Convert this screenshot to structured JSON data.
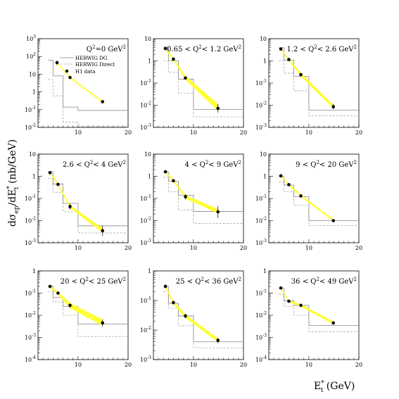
{
  "chart_data": {
    "type": "scatter",
    "xlabel": {
      "main": "E",
      "sub": "t",
      "sup": "*",
      "unit": " (GeV)"
    },
    "ylabel": {
      "prefix": "dσ",
      "sub1": "ep",
      "mid": "/dE",
      "sup2": "*",
      "sub2": "t",
      "unit": " (nb/GeV)"
    },
    "x_ticks": [
      "10",
      "20"
    ],
    "xlim": [
      2,
      20
    ],
    "legend": [
      {
        "name": "HERWIG DG",
        "style": "solid-grey"
      },
      {
        "name": "HERWIG Direct",
        "style": "dashed-grey"
      },
      {
        "name": "H1 data",
        "style": "dot"
      }
    ],
    "colors": {
      "band": "#ffff33",
      "data": "#000000",
      "dg": "#888888",
      "direct": "#aaaaaa"
    },
    "bins": [
      [
        4,
        5
      ],
      [
        5,
        7
      ],
      [
        7,
        10
      ],
      [
        10,
        20
      ]
    ],
    "panels": [
      {
        "label": "Q²=0 GeV²",
        "q2_text": {
          "a": "Q",
          "b": "2",
          "c": "=0 GeV",
          "d": "2"
        },
        "yexp": [
          -2,
          3
        ],
        "y_tick_labels": [
          "10^-2",
          "10^-1",
          "1",
          "10",
          "10^2",
          "10^3"
        ],
        "data": [
          [
            5.8,
            45,
            12,
            12
          ],
          [
            8.4,
            6.5,
            0.9,
            0.9
          ],
          [
            14.9,
            0.28,
            0.03,
            0.03
          ]
        ],
        "band": {
          "x": [
            5.8,
            8.4,
            14.9
          ],
          "lo": [
            40,
            5.8,
            0.25
          ],
          "hi": [
            50,
            7.2,
            0.31
          ]
        },
        "dg": [
          60,
          8,
          0.14,
          0.09
        ],
        "direct": [
          5,
          0.6,
          0.02,
          0.011
        ]
      },
      {
        "label": "0.65<Q²<1.2 GeV²",
        "q2_text": {
          "a": "0.65 < Q",
          "b": "2",
          "c": "< 1.2 GeV",
          "d": "2"
        },
        "yexp": [
          -3,
          1
        ],
        "y_tick_labels": [
          "10^-3",
          "10^-2",
          "10^-1",
          "1",
          "10"
        ],
        "data": [
          [
            4.4,
            3.6,
            0.4,
            0.4
          ],
          [
            6.0,
            1.2,
            0.15,
            0.15
          ],
          [
            8.4,
            0.17,
            0.03,
            0.03
          ],
          [
            14.9,
            0.0072,
            0.004,
            0.0025
          ]
        ],
        "band": {
          "x": [
            4.4,
            6.0,
            8.4,
            14.9
          ],
          "lo": [
            3.2,
            1.05,
            0.14,
            0.0055
          ],
          "hi": [
            4.0,
            1.35,
            0.21,
            0.0115
          ]
        },
        "dg": [
          4.2,
          1.0,
          0.15,
          0.0065
        ],
        "direct": [
          1.0,
          0.3,
          0.034,
          0.003
        ]
      },
      {
        "label": "1.2<Q²<2.6 GeV²",
        "q2_text": {
          "a": "1.2 < Q",
          "b": "2",
          "c": "< 2.6 GeV",
          "d": "2"
        },
        "yexp": [
          -3,
          1
        ],
        "y_tick_labels": [
          "10^-3",
          "10^-2",
          "10^-1",
          "1",
          "10"
        ],
        "data": [
          [
            4.4,
            3.4,
            0.3,
            0.3
          ],
          [
            6.0,
            1.15,
            0.12,
            0.12
          ],
          [
            8.4,
            0.24,
            0.04,
            0.04
          ],
          [
            14.9,
            0.0085,
            0.003,
            0.002
          ]
        ],
        "band": {
          "x": [
            4.4,
            6.0,
            8.4,
            14.9
          ],
          "lo": [
            3.1,
            1.02,
            0.2,
            0.0072
          ],
          "hi": [
            3.7,
            1.28,
            0.29,
            0.0105
          ]
        },
        "dg": [
          4.0,
          1.05,
          0.2,
          0.006
        ],
        "direct": [
          1.0,
          0.28,
          0.045,
          0.0033
        ]
      },
      {
        "label": "2.6<Q²<4 GeV²",
        "q2_text": {
          "a": "2.6 < Q",
          "b": "2",
          "c": "< 4 GeV",
          "d": "2"
        },
        "yexp": [
          -3,
          1
        ],
        "y_tick_labels": [
          "10^-3",
          "10^-2",
          "10^-1",
          "1",
          "10"
        ],
        "data": [
          [
            4.4,
            1.45,
            0.2,
            0.2
          ],
          [
            6.0,
            0.43,
            0.06,
            0.06
          ],
          [
            8.4,
            0.043,
            0.015,
            0.012
          ],
          [
            14.9,
            0.0035,
            0.0025,
            0.0015
          ]
        ],
        "band": {
          "x": [
            4.4,
            6.0,
            8.4,
            14.9
          ],
          "lo": [
            1.3,
            0.38,
            0.037,
            0.0029
          ],
          "hi": [
            1.62,
            0.5,
            0.05,
            0.0045
          ]
        },
        "dg": [
          1.6,
          0.45,
          0.06,
          0.0058
        ],
        "direct": [
          0.8,
          0.19,
          0.025,
          0.0028
        ]
      },
      {
        "label": "4<Q²<9 GeV²",
        "q2_text": {
          "a": "4 < Q",
          "b": "2",
          "c": "< 9 GeV",
          "d": "2"
        },
        "yexp": [
          -3,
          1
        ],
        "y_tick_labels": [
          "10^-3",
          "10^-2",
          "10^-1",
          "1",
          "10"
        ],
        "data": [
          [
            4.4,
            1.6,
            0.2,
            0.2
          ],
          [
            6.0,
            0.63,
            0.08,
            0.08
          ],
          [
            8.4,
            0.12,
            0.035,
            0.03
          ],
          [
            14.9,
            0.025,
            0.02,
            0.012
          ]
        ],
        "band": {
          "x": [
            4.4,
            6.0,
            8.4,
            14.9
          ],
          "lo": [
            1.45,
            0.56,
            0.1,
            0.021
          ],
          "hi": [
            1.78,
            0.72,
            0.14,
            0.033
          ]
        },
        "dg": [
          1.6,
          0.6,
          0.14,
          0.026
        ],
        "direct": [
          0.9,
          0.2,
          0.03,
          0.0075
        ]
      },
      {
        "label": "9<Q²<20 GeV²",
        "q2_text": {
          "a": "9 < Q",
          "b": "2",
          "c": "< 20 GeV",
          "d": "2"
        },
        "yexp": [
          -3,
          1
        ],
        "y_tick_labels": [
          "10^-3",
          "10^-2",
          "10^-1",
          "1",
          "10"
        ],
        "data": [
          [
            4.4,
            1.05,
            0.12,
            0.12
          ],
          [
            6.0,
            0.42,
            0.05,
            0.05
          ],
          [
            8.4,
            0.13,
            0.025,
            0.025
          ],
          [
            14.9,
            0.01,
            0.0015,
            0.0015
          ]
        ],
        "band": {
          "x": [
            4.4,
            6.0,
            8.4,
            14.9
          ],
          "lo": [
            0.97,
            0.38,
            0.12,
            0.0092
          ],
          "hi": [
            1.15,
            0.47,
            0.15,
            0.0115
          ]
        },
        "dg": [
          1.0,
          0.4,
          0.12,
          0.01
        ],
        "direct": [
          0.55,
          0.2,
          0.05,
          0.006
        ]
      },
      {
        "label": "20<Q²<25 GeV²",
        "q2_text": {
          "a": "20 < Q",
          "b": "2",
          "c": "< 25 GeV",
          "d": "2"
        },
        "yexp": [
          -4,
          0
        ],
        "y_tick_labels": [
          "10^-4",
          "10^-3",
          "10^-2",
          "10^-1",
          "1"
        ],
        "data": [
          [
            4.4,
            0.2,
            0.03,
            0.03
          ],
          [
            6.0,
            0.1,
            0.015,
            0.015
          ],
          [
            8.4,
            0.028,
            0.006,
            0.006
          ],
          [
            14.9,
            0.0045,
            0.002,
            0.0015
          ]
        ],
        "band": {
          "x": [
            4.4,
            6.0,
            8.4,
            14.9
          ],
          "lo": [
            0.18,
            0.085,
            0.021,
            0.0034
          ],
          "hi": [
            0.23,
            0.115,
            0.036,
            0.0065
          ]
        },
        "dg": [
          0.21,
          0.065,
          0.025,
          0.004
        ],
        "direct": [
          0.12,
          0.04,
          0.01,
          0.0011
        ]
      },
      {
        "label": "25<Q²<36 GeV²",
        "q2_text": {
          "a": "25 < Q",
          "b": "2",
          "c": "< 36 GeV",
          "d": "2"
        },
        "yexp": [
          -3,
          0
        ],
        "y_tick_labels": [
          "10^-3",
          "10^-2",
          "10^-1",
          "1"
        ],
        "data": [
          [
            4.4,
            0.3,
            0.04,
            0.04
          ],
          [
            6.0,
            0.085,
            0.012,
            0.012
          ],
          [
            8.4,
            0.03,
            0.005,
            0.005
          ],
          [
            14.9,
            0.0045,
            0.0009,
            0.0009
          ]
        ],
        "band": {
          "x": [
            4.4,
            6.0,
            8.4,
            14.9
          ],
          "lo": [
            0.27,
            0.075,
            0.026,
            0.0039
          ],
          "hi": [
            0.33,
            0.096,
            0.034,
            0.0052
          ]
        },
        "dg": [
          0.3,
          0.08,
          0.03,
          0.004
        ],
        "direct": [
          0.2,
          0.055,
          0.014,
          0.0025
        ]
      },
      {
        "label": "36<Q²<49 GeV²",
        "q2_text": {
          "a": "36 < Q",
          "b": "2",
          "c": "< 49 GeV",
          "d": "2"
        },
        "yexp": [
          -4,
          0
        ],
        "y_tick_labels": [
          "10^-4",
          "10^-3",
          "10^-2",
          "10^-1",
          "1"
        ],
        "data": [
          [
            4.4,
            0.17,
            0.02,
            0.02
          ],
          [
            6.0,
            0.043,
            0.006,
            0.006
          ],
          [
            8.4,
            0.028,
            0.004,
            0.004
          ],
          [
            14.9,
            0.0045,
            0.0008,
            0.0008
          ]
        ],
        "band": {
          "x": [
            4.4,
            6.0,
            8.4,
            14.9
          ],
          "lo": [
            0.155,
            0.039,
            0.025,
            0.0039
          ],
          "hi": [
            0.19,
            0.048,
            0.032,
            0.0052
          ]
        },
        "dg": [
          0.17,
          0.045,
          0.028,
          0.0035
        ],
        "direct": [
          0.09,
          0.025,
          0.01,
          0.0018
        ]
      }
    ]
  }
}
